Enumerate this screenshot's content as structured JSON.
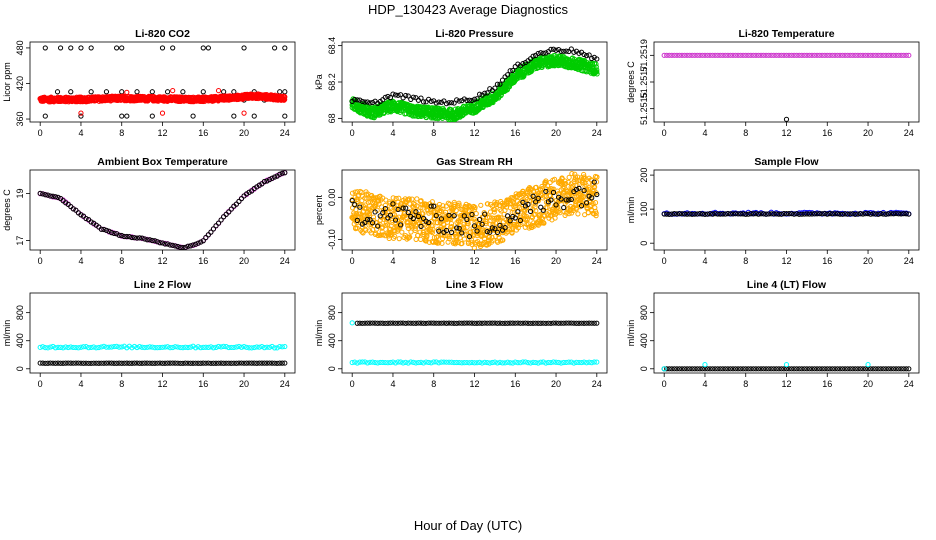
{
  "page": {
    "title": "HDP_130423  Average Diagnostics",
    "xlabel": "Hour of Day (UTC)"
  },
  "chart_data": [
    {
      "id": "co2",
      "type": "scatter",
      "title": "Li-820 CO2",
      "ylabel": "Licor ppm",
      "xlim": [
        -1,
        25
      ],
      "ylim": [
        355,
        490
      ],
      "xticks": [
        0,
        4,
        8,
        12,
        16,
        20,
        24
      ],
      "yticks": [
        360,
        420,
        480
      ],
      "series": [
        {
          "color": "#000000",
          "generator": "spikes",
          "x": [
            0.5,
            2,
            3,
            4,
            5,
            7.5,
            8,
            12,
            13,
            16,
            16.5,
            20,
            23,
            24
          ],
          "y": [
            480,
            480,
            480,
            480,
            480,
            480,
            480,
            480,
            480,
            480,
            480,
            480,
            480,
            480
          ]
        },
        {
          "color": "#000000",
          "generator": "spikes",
          "x": [
            0.5,
            1,
            3,
            4,
            5.5,
            6,
            8,
            8.5,
            9,
            11,
            12,
            13,
            15,
            17,
            19,
            20,
            21,
            22,
            24
          ],
          "y": [
            365,
            392,
            392,
            365,
            392,
            392,
            365,
            365,
            392,
            365,
            392,
            392,
            365,
            392,
            365,
            392,
            365,
            392,
            365
          ]
        },
        {
          "color": "#000000",
          "generator": "spikes",
          "x": [
            1.7,
            3,
            5,
            6.5,
            8,
            9.5,
            11,
            12.5,
            14,
            16,
            18,
            19,
            21,
            23.5,
            24
          ],
          "y": [
            406,
            406,
            406,
            406,
            406,
            406,
            406,
            406,
            406,
            406,
            406,
            406,
            406,
            406,
            406
          ]
        },
        {
          "color": "#ff0000",
          "generator": "band",
          "x": [
            0,
            4,
            8,
            12,
            16,
            19,
            21,
            24
          ],
          "y": [
            393,
            393,
            395,
            394,
            393,
            396,
            399,
            395
          ],
          "spread": 4
        },
        {
          "color": "#ff0000",
          "generator": "spikes",
          "x": [
            4,
            8.5,
            12,
            13,
            17.5,
            20
          ],
          "y": [
            370,
            405,
            370,
            408,
            408,
            370
          ]
        }
      ]
    },
    {
      "id": "pressure",
      "type": "scatter",
      "title": "Li-820 Pressure",
      "ylabel": "kPa",
      "xlim": [
        -1,
        25
      ],
      "ylim": [
        67.98,
        68.42
      ],
      "xticks": [
        0,
        4,
        8,
        12,
        16,
        20,
        24
      ],
      "yticks": [
        68.0,
        68.2,
        68.4
      ],
      "series": [
        {
          "color": "#00cc00",
          "generator": "band",
          "x": [
            0,
            2,
            4,
            6,
            8,
            10,
            12,
            14,
            16,
            18,
            20,
            22,
            24
          ],
          "y": [
            68.08,
            68.03,
            68.07,
            68.04,
            68.03,
            68.02,
            68.06,
            68.12,
            68.23,
            68.3,
            68.32,
            68.3,
            68.27
          ],
          "spread": 0.03
        },
        {
          "color": "#000000",
          "generator": "line",
          "x": [
            0,
            2,
            4,
            6,
            8,
            10,
            12,
            14,
            16,
            18,
            20,
            22,
            24
          ],
          "y": [
            68.1,
            68.08,
            68.13,
            68.11,
            68.09,
            68.09,
            68.11,
            68.17,
            68.28,
            68.35,
            68.38,
            68.37,
            68.32
          ],
          "jitter": 0.01
        }
      ]
    },
    {
      "id": "temp",
      "type": "scatter",
      "title": "Li-820 Temperature",
      "ylabel": "degrees C",
      "xlim": [
        -1,
        25
      ],
      "ylim": [
        51.2514,
        51.252
      ],
      "xticks": [
        0,
        4,
        8,
        12,
        16,
        20,
        24
      ],
      "yticks": [
        51.2515,
        51.2517,
        51.2519
      ],
      "ytick_labels": [
        "51.2515",
        "51.2517",
        "51.2519"
      ],
      "series": [
        {
          "color": "#cc33cc",
          "generator": "line",
          "x": [
            0,
            24
          ],
          "y": [
            51.2519,
            51.2519
          ],
          "jitter": 0
        },
        {
          "color": "#000000",
          "generator": "spikes",
          "x": [
            12
          ],
          "y": [
            51.25142
          ]
        }
      ]
    },
    {
      "id": "boxtemp",
      "type": "scatter",
      "title": "Ambient Box Temperature",
      "ylabel": "degrees C",
      "xlim": [
        -1,
        25
      ],
      "ylim": [
        16.6,
        20.0
      ],
      "xticks": [
        0,
        4,
        8,
        12,
        16,
        20,
        24
      ],
      "yticks": [
        17,
        19
      ],
      "series": [
        {
          "color": "#cc33cc",
          "generator": "line",
          "x": [
            0,
            2,
            4,
            6,
            8,
            10,
            12,
            14,
            15,
            16,
            18,
            20,
            22,
            24
          ],
          "y": [
            19.0,
            18.8,
            18.1,
            17.5,
            17.2,
            17.1,
            16.9,
            16.7,
            16.8,
            17.0,
            18.0,
            18.9,
            19.5,
            19.9
          ],
          "jitter": 0.02
        },
        {
          "color": "#000000",
          "generator": "line",
          "x": [
            0,
            2,
            4,
            6,
            8,
            10,
            12,
            14,
            15,
            16,
            18,
            20,
            22,
            24
          ],
          "y": [
            19.0,
            18.8,
            18.1,
            17.5,
            17.2,
            17.1,
            16.9,
            16.7,
            16.8,
            17.0,
            18.0,
            18.9,
            19.5,
            19.9
          ],
          "jitter": 0.02
        }
      ]
    },
    {
      "id": "rh",
      "type": "scatter",
      "title": "Gas Stream RH",
      "ylabel": "percent",
      "xlim": [
        -1,
        25
      ],
      "ylim": [
        -0.125,
        0.065
      ],
      "xticks": [
        0,
        4,
        8,
        12,
        16,
        20,
        24
      ],
      "yticks": [
        -0.1,
        0.0
      ],
      "ytick_labels": [
        "-0.10",
        "0.00"
      ],
      "series": [
        {
          "color": "#ffaa00",
          "generator": "band",
          "x": [
            0,
            2,
            4,
            6,
            8,
            10,
            12,
            14,
            16,
            18,
            20,
            22,
            24
          ],
          "y": [
            -0.03,
            -0.04,
            -0.05,
            -0.05,
            -0.06,
            -0.06,
            -0.07,
            -0.06,
            -0.04,
            -0.02,
            0.0,
            0.01,
            0.0
          ],
          "spread": 0.05
        },
        {
          "color": "#000000",
          "generator": "line",
          "x": [
            0,
            2,
            4,
            6,
            8,
            10,
            12,
            14,
            16,
            18,
            20,
            22,
            24
          ],
          "y": [
            -0.03,
            -0.04,
            -0.04,
            -0.05,
            -0.05,
            -0.06,
            -0.07,
            -0.06,
            -0.04,
            -0.02,
            0.0,
            0.01,
            0.01
          ],
          "jitter": 0.03
        }
      ]
    },
    {
      "id": "sampleflow",
      "type": "scatter",
      "title": "Sample Flow",
      "ylabel": "ml/min",
      "xlim": [
        -1,
        25
      ],
      "ylim": [
        -20,
        215
      ],
      "xticks": [
        0,
        4,
        8,
        12,
        16,
        20,
        24
      ],
      "yticks": [
        0,
        100,
        200
      ],
      "series": [
        {
          "color": "#0000ff",
          "generator": "line",
          "x": [
            0,
            24
          ],
          "y": [
            88,
            88
          ],
          "jitter": 3
        },
        {
          "color": "#000000",
          "generator": "line",
          "x": [
            0,
            24
          ],
          "y": [
            86,
            86
          ],
          "jitter": 1
        }
      ]
    },
    {
      "id": "line2",
      "type": "scatter",
      "title": "Line 2 Flow",
      "ylabel": "ml/min",
      "xlim": [
        -1,
        25
      ],
      "ylim": [
        -60,
        1080
      ],
      "xticks": [
        0,
        4,
        8,
        12,
        16,
        20,
        24
      ],
      "yticks": [
        0,
        400,
        800
      ],
      "series": [
        {
          "color": "#00ffff",
          "generator": "line",
          "x": [
            0,
            24
          ],
          "y": [
            310,
            310
          ],
          "jitter": 12
        },
        {
          "color": "#000000",
          "generator": "line",
          "x": [
            0,
            24
          ],
          "y": [
            80,
            80
          ],
          "jitter": 2
        }
      ]
    },
    {
      "id": "line3",
      "type": "scatter",
      "title": "Line 3 Flow",
      "ylabel": "ml/min",
      "xlim": [
        -1,
        25
      ],
      "ylim": [
        -60,
        1080
      ],
      "xticks": [
        0,
        4,
        8,
        12,
        16,
        20,
        24
      ],
      "yticks": [
        0,
        400,
        800
      ],
      "series": [
        {
          "color": "#00ffff",
          "generator": "line",
          "x": [
            0,
            24
          ],
          "y": [
            90,
            90
          ],
          "jitter": 8
        },
        {
          "color": "#000000",
          "generator": "line",
          "x": [
            0.5,
            24
          ],
          "y": [
            650,
            650
          ],
          "jitter": 2
        },
        {
          "color": "#00ffff",
          "generator": "spikes",
          "x": [
            0
          ],
          "y": [
            655
          ]
        }
      ]
    },
    {
      "id": "line4",
      "type": "scatter",
      "title": "Line 4 (LT) Flow",
      "ylabel": "ml/min",
      "xlim": [
        -1,
        25
      ],
      "ylim": [
        -60,
        1080
      ],
      "xticks": [
        0,
        4,
        8,
        12,
        16,
        20,
        24
      ],
      "yticks": [
        0,
        400,
        800
      ],
      "series": [
        {
          "color": "#000000",
          "generator": "line",
          "x": [
            0,
            24
          ],
          "y": [
            0,
            0
          ],
          "jitter": 0
        },
        {
          "color": "#00ffff",
          "generator": "spikes",
          "x": [
            0,
            4,
            12,
            20
          ],
          "y": [
            0,
            60,
            60,
            60
          ]
        }
      ]
    }
  ]
}
